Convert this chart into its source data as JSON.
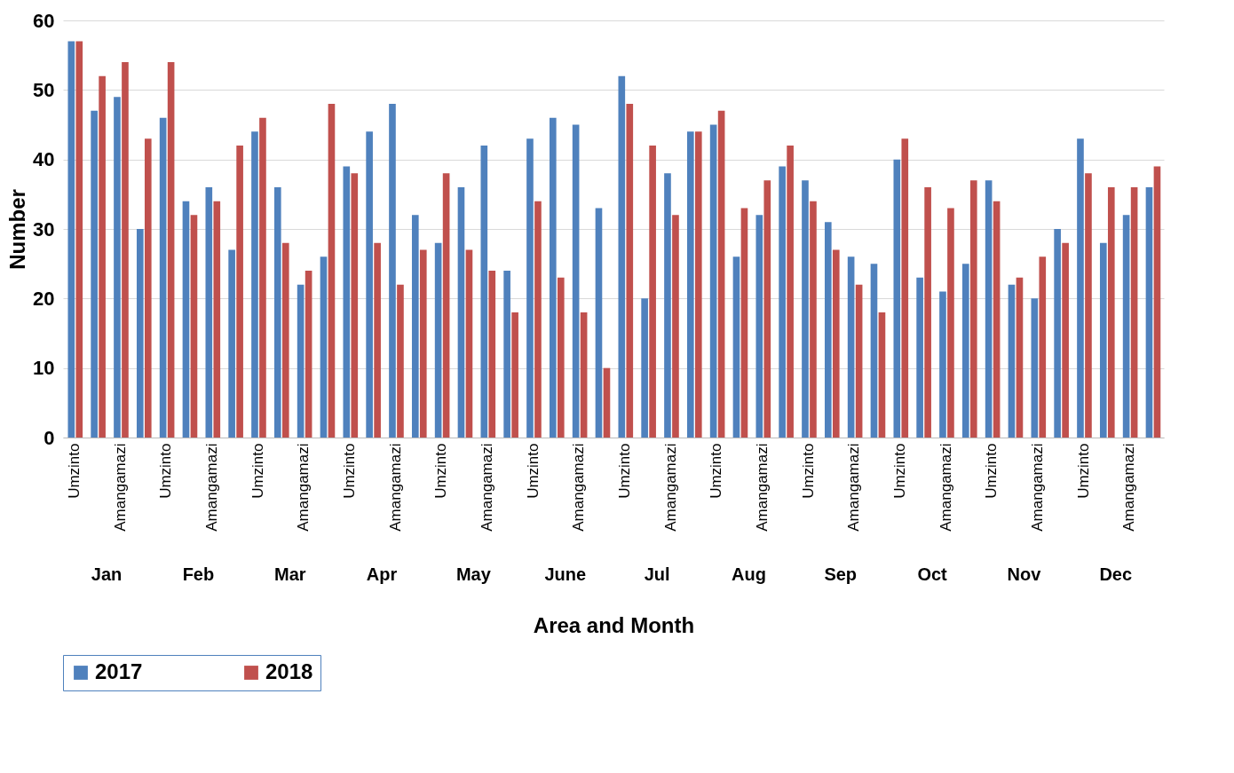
{
  "chart_data": {
    "type": "bar",
    "xlabel": "Area and Month",
    "ylabel": "Number",
    "categories": [
      "Umzinto",
      null,
      "Amangamazi",
      null,
      "Umzinto",
      null,
      "Amangamazi",
      null,
      "Umzinto",
      null,
      "Amangamazi",
      null,
      "Umzinto",
      null,
      "Amangamazi",
      null,
      "Umzinto",
      null,
      "Amangamazi",
      null,
      "Umzinto",
      null,
      "Amangamazi",
      null,
      "Umzinto",
      null,
      "Amangamazi",
      null,
      "Umzinto",
      null,
      "Amangamazi",
      null,
      "Umzinto",
      null,
      "Amangamazi",
      null,
      "Umzinto",
      null,
      "Amangamazi",
      null,
      "Umzinto",
      null,
      "Amangamazi",
      null,
      "Umzinto",
      null,
      "Amangamazi",
      null
    ],
    "annotations": [
      "Jan",
      "Feb",
      "Mar",
      "Apr",
      "May",
      "June",
      "Jul",
      "Aug",
      "Sep",
      "Oct",
      "Nov",
      "Dec"
    ],
    "series": [
      {
        "name": "2017",
        "color": "#4f81bd",
        "values": [
          57,
          47,
          49,
          30,
          46,
          34,
          36,
          27,
          44,
          36,
          22,
          26,
          39,
          44,
          48,
          32,
          28,
          36,
          42,
          24,
          43,
          46,
          45,
          33,
          52,
          20,
          38,
          44,
          45,
          26,
          32,
          39,
          37,
          31,
          26,
          25,
          40,
          23,
          21,
          25,
          37,
          22,
          20,
          30,
          43,
          28,
          32,
          36
        ]
      },
      {
        "name": "2018",
        "color": "#c0504d",
        "values": [
          57,
          52,
          54,
          43,
          54,
          32,
          34,
          42,
          46,
          28,
          24,
          48,
          38,
          28,
          22,
          27,
          38,
          27,
          24,
          18,
          34,
          23,
          18,
          10,
          48,
          42,
          32,
          44,
          47,
          33,
          37,
          42,
          34,
          27,
          22,
          18,
          43,
          36,
          33,
          37,
          34,
          23,
          26,
          28,
          38,
          36,
          36,
          39
        ]
      }
    ],
    "ylim": [
      0,
      60
    ],
    "yticks": [
      0,
      10,
      20,
      30,
      40,
      50,
      60
    ],
    "grid": "y",
    "legend": "bottom"
  }
}
